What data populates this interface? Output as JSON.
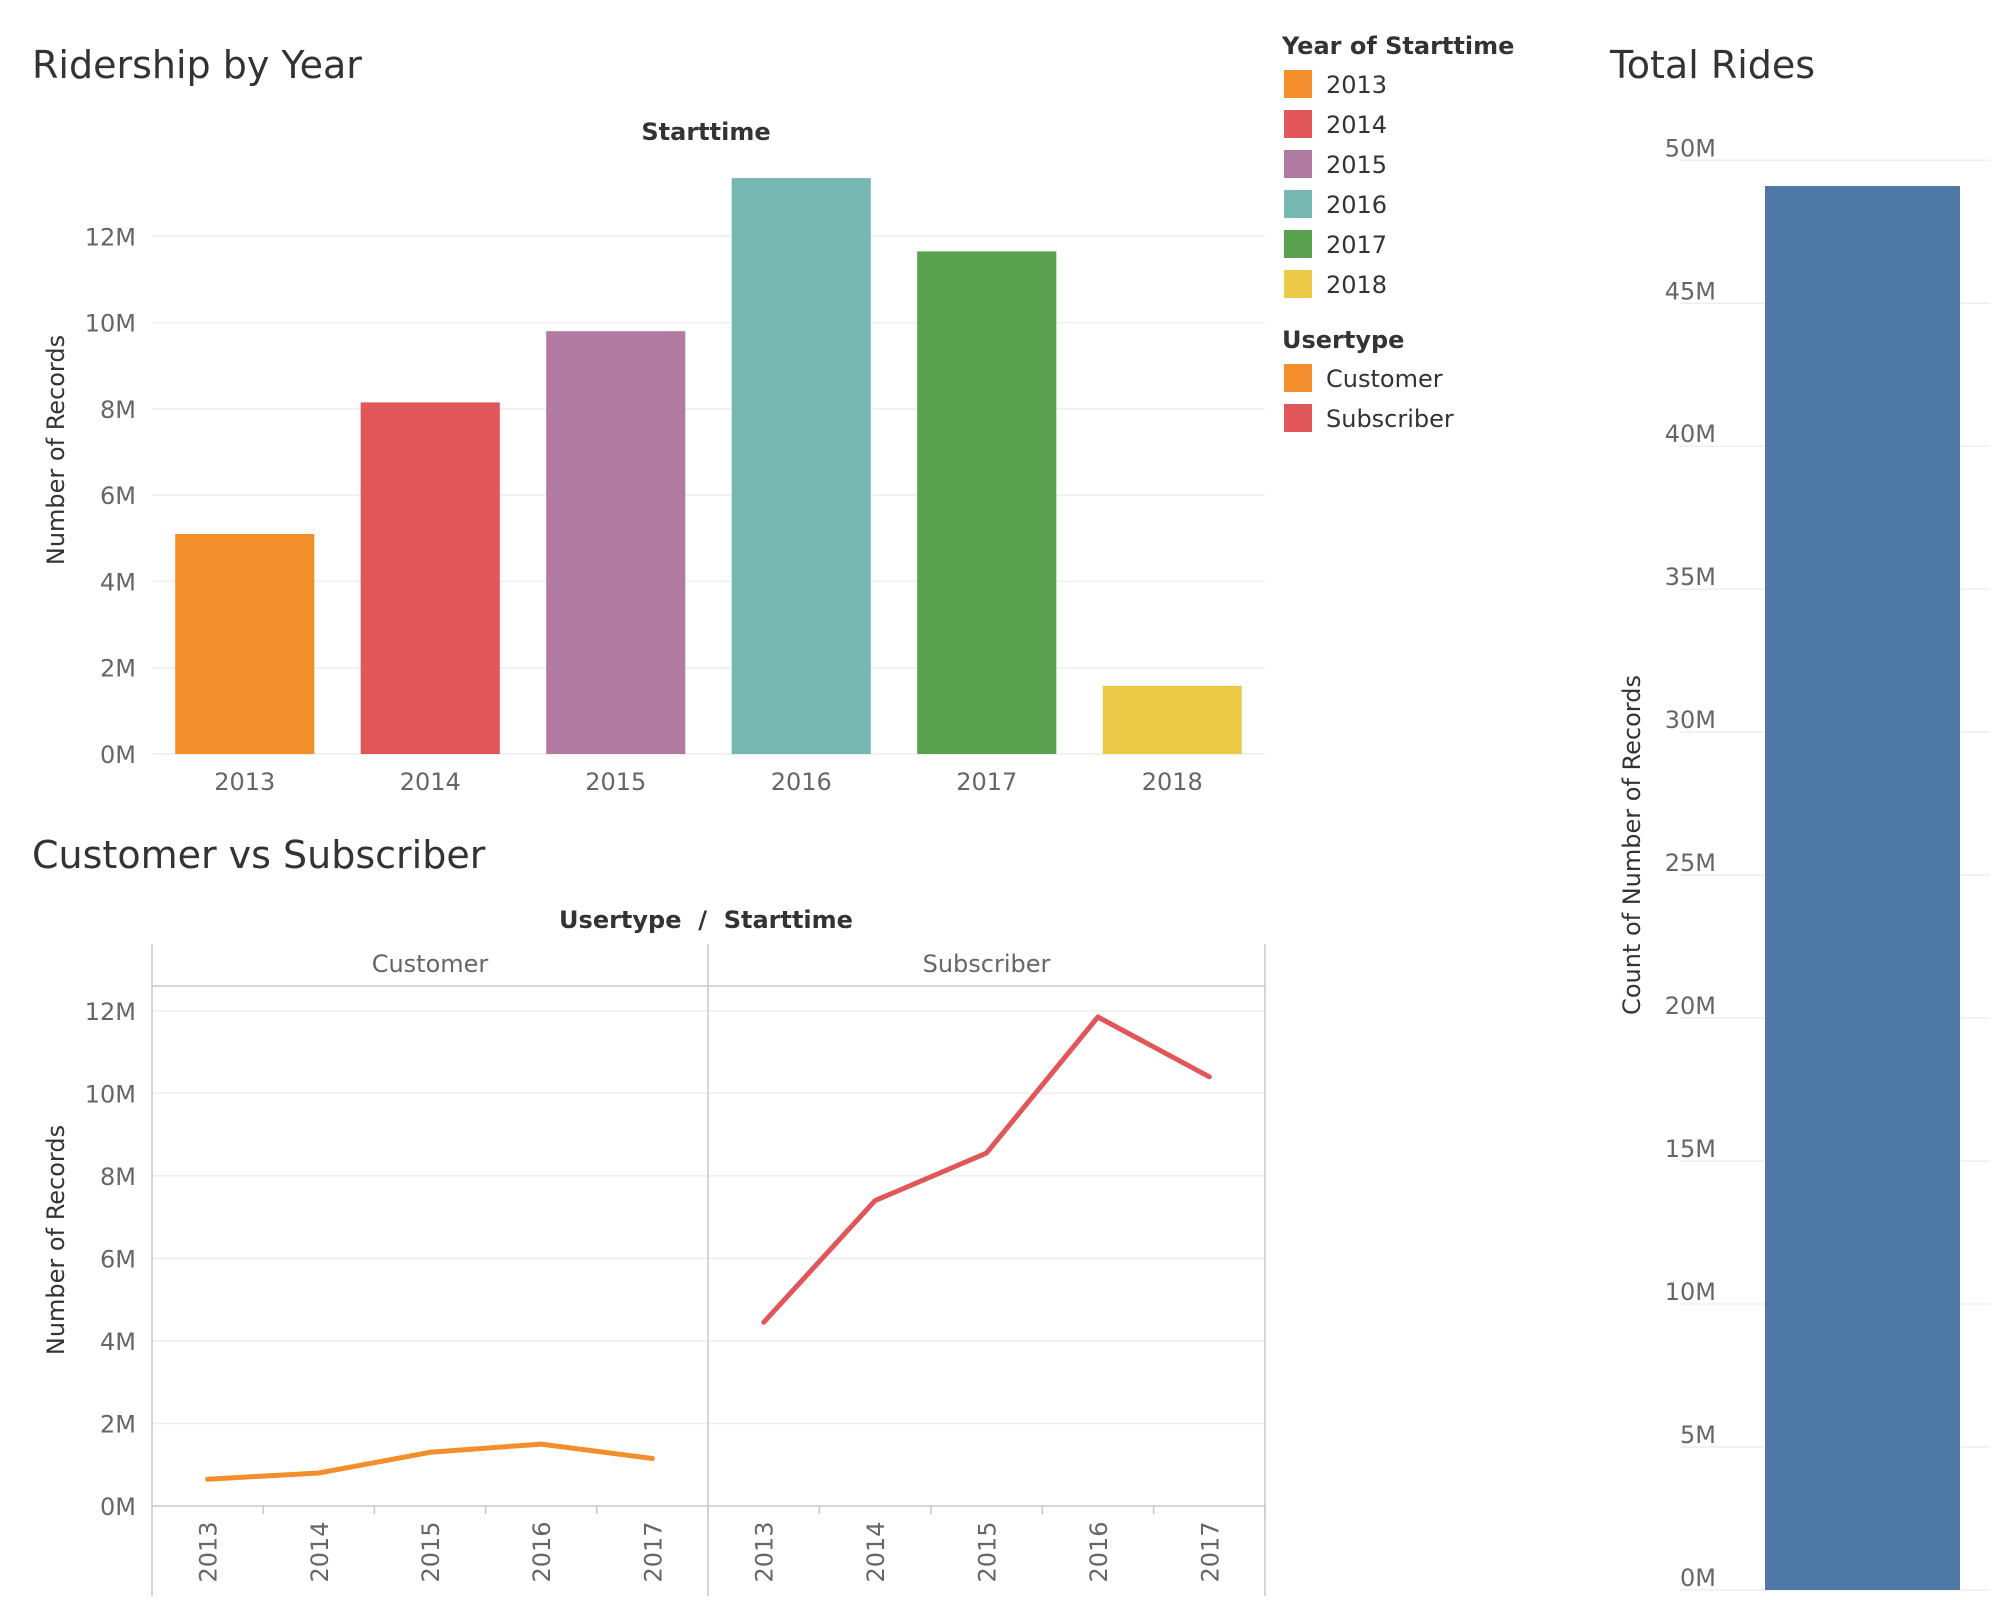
{
  "dashboard": {
    "ridership": {
      "title": "Ridership by Year",
      "header": "Starttime"
    },
    "customer_vs_subscriber": {
      "title": "Customer vs Subscriber",
      "header": "Usertype  /  Starttime"
    },
    "total_rides": {
      "title": "Total Rides"
    },
    "legend_year": {
      "title": "Year of Starttime",
      "items": [
        {
          "label": "2013",
          "color": "#f28e2b"
        },
        {
          "label": "2014",
          "color": "#e15759"
        },
        {
          "label": "2015",
          "color": "#b07aa1"
        },
        {
          "label": "2016",
          "color": "#76b7b2"
        },
        {
          "label": "2017",
          "color": "#59a14f"
        },
        {
          "label": "2018",
          "color": "#edc948"
        }
      ]
    },
    "legend_usertype": {
      "title": "Usertype",
      "items": [
        {
          "label": "Customer",
          "color": "#f28e2b"
        },
        {
          "label": "Subscriber",
          "color": "#e15759"
        }
      ]
    }
  },
  "chart_data": [
    {
      "type": "bar",
      "title": "Ridership by Year",
      "header": "Starttime",
      "ylabel": "Number of Records",
      "categories": [
        "2013",
        "2014",
        "2015",
        "2016",
        "2017",
        "2018"
      ],
      "values": [
        5100000,
        8150000,
        9800000,
        13350000,
        11650000,
        1580000
      ],
      "colors": [
        "#f28e2b",
        "#e15759",
        "#b07aa1",
        "#76b7b2",
        "#59a14f",
        "#edc948"
      ],
      "ylim": [
        0,
        14000000
      ],
      "yticks": [
        0,
        2000000,
        4000000,
        6000000,
        8000000,
        10000000,
        12000000
      ],
      "ytick_labels": [
        "0M",
        "2M",
        "4M",
        "6M",
        "8M",
        "10M",
        "12M"
      ],
      "grid": true
    },
    {
      "type": "line",
      "title": "Customer vs Subscriber",
      "header": "Usertype  /  Starttime",
      "ylabel": "Number of Records",
      "ylim": [
        0,
        12600000
      ],
      "yticks": [
        0,
        2000000,
        4000000,
        6000000,
        8000000,
        10000000,
        12000000
      ],
      "ytick_labels": [
        "0M",
        "2M",
        "4M",
        "6M",
        "8M",
        "10M",
        "12M"
      ],
      "panels": [
        {
          "name": "Customer",
          "color": "#f28e2b",
          "x": [
            "2013",
            "2014",
            "2015",
            "2016",
            "2017"
          ],
          "values": [
            650000,
            800000,
            1300000,
            1500000,
            1150000
          ]
        },
        {
          "name": "Subscriber",
          "color": "#e15759",
          "x": [
            "2013",
            "2014",
            "2015",
            "2016",
            "2017"
          ],
          "values": [
            4450000,
            7400000,
            8550000,
            11850000,
            10400000
          ]
        }
      ],
      "grid": true
    },
    {
      "type": "bar",
      "title": "Total Rides",
      "ylabel": "Count of Number of Records",
      "categories": [
        ""
      ],
      "values": [
        49100000
      ],
      "colors": [
        "#4e79a7"
      ],
      "ylim": [
        0,
        50500000
      ],
      "yticks": [
        0,
        5000000,
        10000000,
        15000000,
        20000000,
        25000000,
        30000000,
        35000000,
        40000000,
        45000000,
        50000000
      ],
      "ytick_labels": [
        "0M",
        "5M",
        "10M",
        "15M",
        "20M",
        "25M",
        "30M",
        "35M",
        "40M",
        "45M",
        "50M"
      ],
      "grid": true
    }
  ]
}
